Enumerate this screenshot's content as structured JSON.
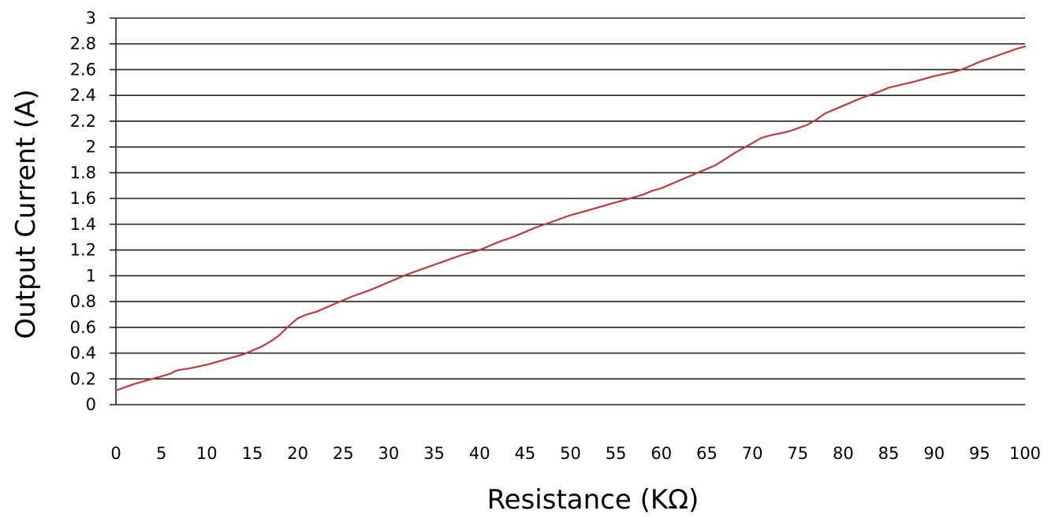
{
  "chart_data": {
    "type": "line",
    "title": "",
    "xlabel": "Resistance (KΩ)",
    "ylabel": "Output Current (A)",
    "xlim": [
      0,
      100
    ],
    "ylim": [
      0,
      3
    ],
    "x_ticks": [
      "0",
      "5",
      "10",
      "15",
      "20",
      "25",
      "30",
      "35",
      "40",
      "45",
      "50",
      "55",
      "60",
      "65",
      "70",
      "75",
      "80",
      "85",
      "90",
      "95",
      "100"
    ],
    "y_ticks": [
      "0",
      "0.2",
      "0.4",
      "0.6",
      "0.8",
      "1",
      "1.2",
      "1.4",
      "1.6",
      "1.8",
      "2",
      "2.2",
      "2.4",
      "2.6",
      "2.8",
      "3"
    ],
    "grid": "horizontal",
    "legend": "none",
    "series": [
      {
        "color": "#c0393b",
        "x": [
          0,
          2,
          4,
          6,
          6.5,
          7,
          8,
          10,
          12,
          14,
          15,
          16,
          17,
          18,
          19,
          20,
          21,
          22,
          24,
          26,
          28,
          30,
          32,
          34,
          36,
          38,
          40,
          42,
          44,
          45,
          46,
          48,
          50,
          52,
          54,
          56,
          58,
          59,
          60,
          62,
          64,
          66,
          68,
          70,
          71,
          72,
          74,
          76,
          77,
          78,
          80,
          82,
          84,
          85,
          88,
          90,
          92,
          93,
          94,
          95,
          97,
          99,
          100
        ],
        "y": [
          0.11,
          0.16,
          0.2,
          0.24,
          0.26,
          0.27,
          0.28,
          0.31,
          0.35,
          0.39,
          0.42,
          0.45,
          0.49,
          0.54,
          0.61,
          0.67,
          0.7,
          0.72,
          0.78,
          0.84,
          0.89,
          0.95,
          1.01,
          1.06,
          1.11,
          1.16,
          1.2,
          1.26,
          1.31,
          1.34,
          1.37,
          1.42,
          1.47,
          1.51,
          1.55,
          1.59,
          1.63,
          1.66,
          1.68,
          1.74,
          1.8,
          1.86,
          1.95,
          2.03,
          2.07,
          2.09,
          2.12,
          2.17,
          2.21,
          2.26,
          2.32,
          2.38,
          2.43,
          2.46,
          2.51,
          2.55,
          2.58,
          2.6,
          2.63,
          2.66,
          2.71,
          2.76,
          2.78
        ]
      }
    ]
  }
}
